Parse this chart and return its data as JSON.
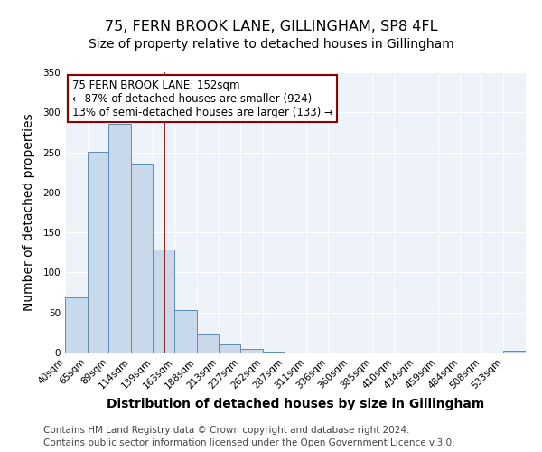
{
  "title": "75, FERN BROOK LANE, GILLINGHAM, SP8 4FL",
  "subtitle": "Size of property relative to detached houses in Gillingham",
  "xlabel": "Distribution of detached houses by size in Gillingham",
  "ylabel": "Number of detached properties",
  "bin_labels": [
    "40sqm",
    "65sqm",
    "89sqm",
    "114sqm",
    "139sqm",
    "163sqm",
    "188sqm",
    "213sqm",
    "237sqm",
    "262sqm",
    "287sqm",
    "311sqm",
    "336sqm",
    "360sqm",
    "385sqm",
    "410sqm",
    "434sqm",
    "459sqm",
    "484sqm",
    "508sqm",
    "533sqm"
  ],
  "bin_edges": [
    40,
    65,
    89,
    114,
    139,
    163,
    188,
    213,
    237,
    262,
    287,
    311,
    336,
    360,
    385,
    410,
    434,
    459,
    484,
    508,
    533,
    558
  ],
  "bar_heights": [
    69,
    251,
    286,
    236,
    129,
    53,
    23,
    10,
    4,
    1,
    0,
    0,
    0,
    0,
    0,
    0,
    0,
    0,
    0,
    0,
    2
  ],
  "bar_color": "#c8d9ec",
  "bar_edge_color": "#5b8db8",
  "vline_x": 152,
  "vline_color": "#8b0000",
  "annotation_text_line1": "75 FERN BROOK LANE: 152sqm",
  "annotation_text_line2": "← 87% of detached houses are smaller (924)",
  "annotation_text_line3": "13% of semi-detached houses are larger (133) →",
  "box_edge_color": "#8b0000",
  "ylim": [
    0,
    350
  ],
  "yticks": [
    0,
    50,
    100,
    150,
    200,
    250,
    300,
    350
  ],
  "footer_line1": "Contains HM Land Registry data © Crown copyright and database right 2024.",
  "footer_line2": "Contains public sector information licensed under the Open Government Licence v.3.0.",
  "background_color": "#eef2f9",
  "title_fontsize": 11.5,
  "subtitle_fontsize": 10,
  "axis_label_fontsize": 10,
  "tick_fontsize": 7.5,
  "annotation_fontsize": 8.5,
  "footer_fontsize": 7.5
}
